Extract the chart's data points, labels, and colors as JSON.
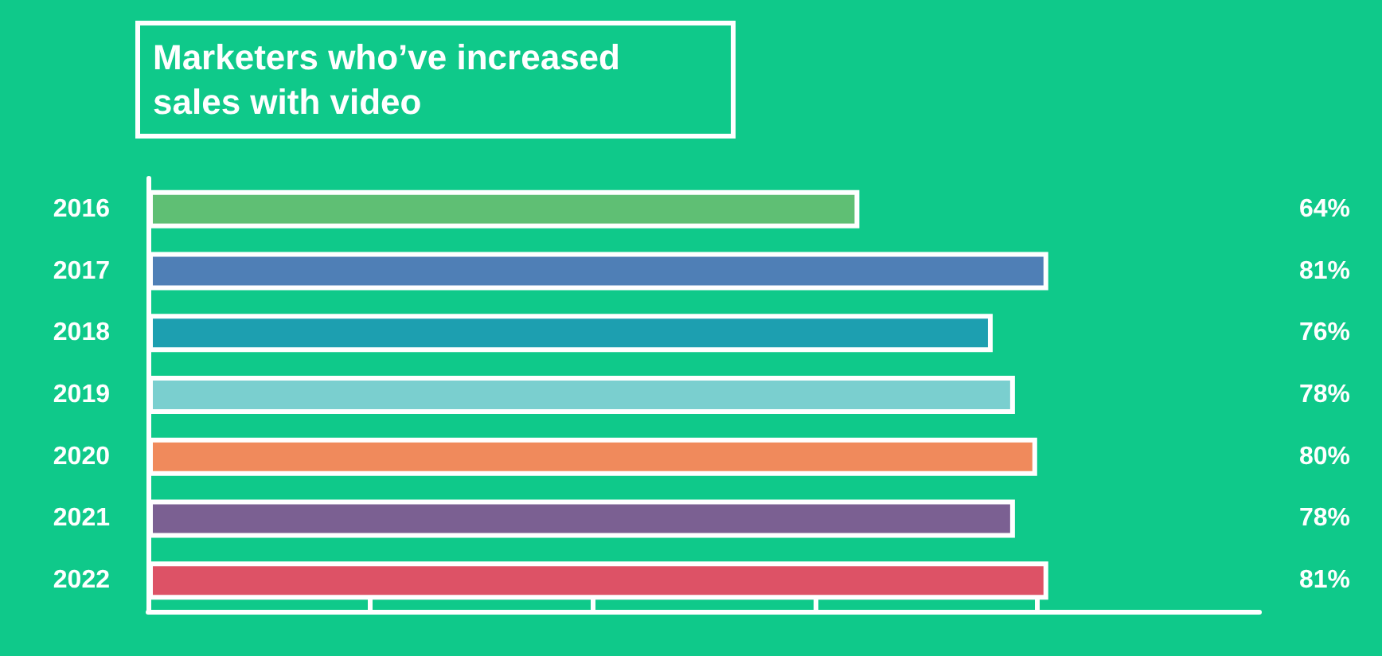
{
  "chart_data": {
    "type": "bar",
    "orientation": "horizontal",
    "title": "Marketers who’ve increased sales with video",
    "categories": [
      "2016",
      "2017",
      "2018",
      "2019",
      "2020",
      "2021",
      "2022"
    ],
    "values": [
      64,
      81,
      76,
      78,
      80,
      78,
      81
    ],
    "colors": [
      "#5fbf74",
      "#4f7fb6",
      "#1d9fb0",
      "#7acfcf",
      "#f08a5c",
      "#7b6092",
      "#dd5266"
    ],
    "value_labels": [
      "64%",
      "81%",
      "76%",
      "78%",
      "80%",
      "78%",
      "81%"
    ],
    "xlim": [
      0,
      100
    ],
    "xticks": [
      {
        "value": 20,
        "label": null
      },
      {
        "value": 40,
        "label": null
      },
      {
        "value": 60,
        "label": null
      },
      {
        "value": 80,
        "label": null
      }
    ],
    "grid": false
  }
}
